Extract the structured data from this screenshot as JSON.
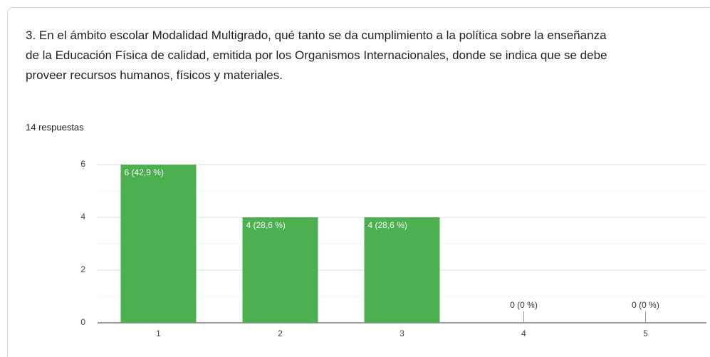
{
  "question": {
    "title": "3. En el ámbito escolar Modalidad Multigrado, qué tanto se da cumplimiento a la política sobre la enseñanza de la Educación Física de calidad, emitida por los Organismos Internacionales, donde se indica que se debe proveer recursos humanos, físicos y materiales.",
    "responses": "14 respuestas"
  },
  "chart_data": {
    "type": "bar",
    "categories": [
      "1",
      "2",
      "3",
      "4",
      "5"
    ],
    "values": [
      6,
      4,
      4,
      0,
      0
    ],
    "value_labels": [
      "6 (42,9 %)",
      "4 (28,6 %)",
      "4 (28,6 %)",
      "0 (0 %)",
      "0 (0 %)"
    ],
    "color": "#4caf50",
    "ylim": [
      0,
      6
    ],
    "yticks": [
      0,
      2,
      4,
      6
    ],
    "minor_yticks": [
      1,
      3,
      5
    ],
    "grid": true
  }
}
